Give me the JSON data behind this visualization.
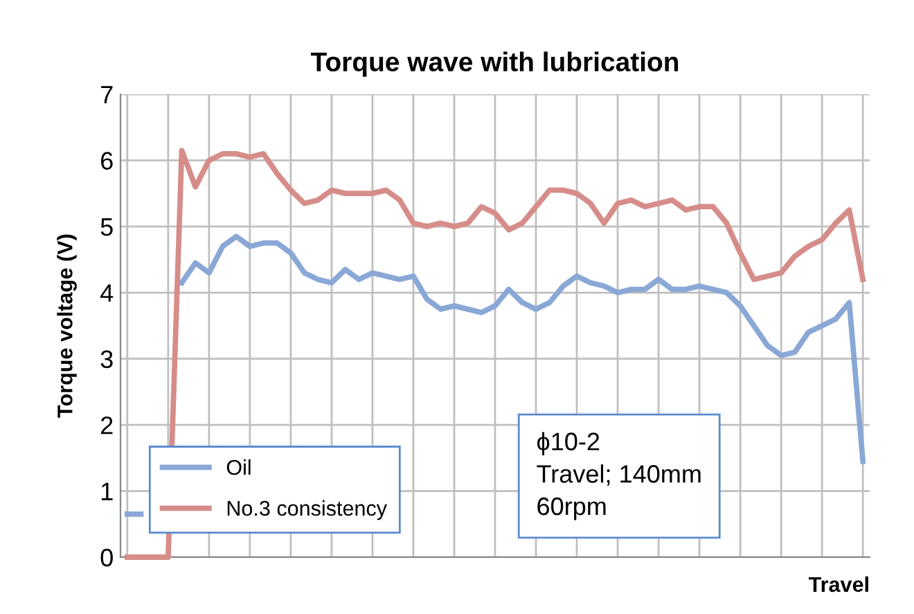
{
  "chart_data": {
    "type": "line",
    "title": "Torque wave with lubrication",
    "xlabel": "Travel",
    "ylabel": "Torque voltage (V)",
    "categories": [
      null,
      null,
      null,
      null,
      null,
      null,
      null,
      null,
      null,
      null,
      null,
      null,
      null,
      null,
      null,
      null,
      null,
      null,
      null,
      null,
      null,
      null,
      null,
      null,
      null,
      null,
      null,
      null,
      null,
      null,
      null,
      null,
      null,
      null,
      null,
      null,
      null,
      null,
      null,
      null,
      null,
      null,
      null,
      null,
      null,
      null,
      null,
      null,
      null,
      null,
      null,
      null,
      null,
      null,
      null
    ],
    "series": [
      {
        "name": "Oil",
        "color": "#8aa8d6",
        "values": [
          0.65,
          0.65,
          null,
          null,
          4.15,
          4.45,
          4.3,
          4.7,
          4.85,
          4.7,
          4.75,
          4.75,
          4.6,
          4.3,
          4.2,
          4.15,
          4.35,
          4.2,
          4.3,
          4.25,
          4.2,
          4.25,
          3.9,
          3.75,
          3.8,
          3.75,
          3.7,
          3.8,
          4.05,
          3.85,
          3.75,
          3.85,
          4.1,
          4.25,
          4.15,
          4.1,
          4.0,
          4.05,
          4.05,
          4.2,
          4.05,
          4.05,
          4.1,
          4.05,
          4.0,
          3.8,
          3.5,
          3.2,
          3.05,
          3.1,
          3.4,
          3.5,
          3.6,
          3.85,
          1.45
        ]
      },
      {
        "name": "No.3 consistency",
        "color": "#d68d89",
        "values": [
          0,
          0,
          0,
          0,
          6.15,
          5.6,
          6.0,
          6.1,
          6.1,
          6.05,
          6.1,
          5.8,
          5.55,
          5.35,
          5.4,
          5.55,
          5.5,
          5.5,
          5.5,
          5.55,
          5.4,
          5.05,
          5.0,
          5.05,
          5.0,
          5.05,
          5.3,
          5.2,
          4.95,
          5.05,
          5.3,
          5.55,
          5.55,
          5.5,
          5.35,
          5.05,
          5.35,
          5.4,
          5.3,
          5.35,
          5.4,
          5.25,
          5.3,
          5.3,
          5.05,
          4.6,
          4.2,
          4.25,
          4.3,
          4.55,
          4.7,
          4.8,
          5.05,
          5.25,
          4.2
        ]
      }
    ],
    "ylim": [
      0,
      7
    ],
    "yticks": [
      0,
      1,
      2,
      3,
      4,
      5,
      6,
      7
    ],
    "grid": true,
    "legend": "bottom left",
    "marker": "none",
    "line_style": "solid",
    "annotations": [
      "ϕ10-2\nTravel; 140mm\n60rpm"
    ]
  }
}
